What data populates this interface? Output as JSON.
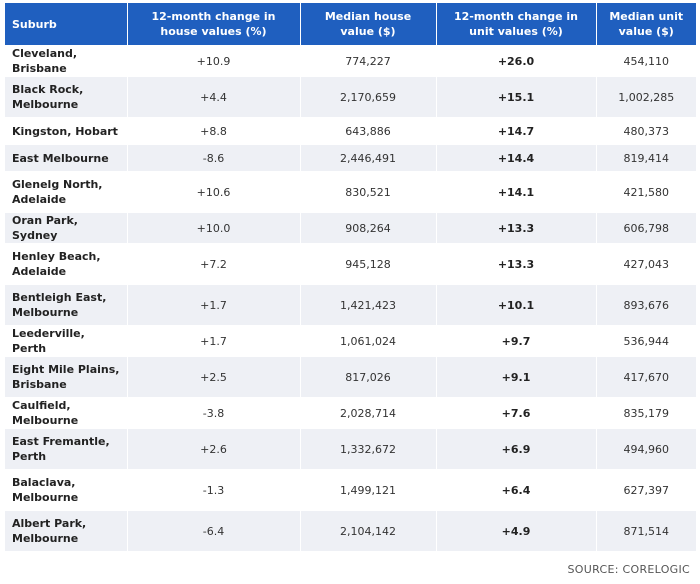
{
  "headers": {
    "suburb": "Suburb",
    "house_change": "12-month change in house values (%)",
    "house_median": "Median house value ($)",
    "unit_change": "12-month change in unit values (%)",
    "unit_median": "Median unit value ($)"
  },
  "rows": [
    {
      "suburb": "Cleveland, Brisbane",
      "house_change": "+10.9",
      "house_median": "774,227",
      "unit_change": "+26.0",
      "unit_median": "454,110"
    },
    {
      "suburb": "Black Rock, Melbourne",
      "house_change": "+4.4",
      "house_median": "2,170,659",
      "unit_change": "+15.1",
      "unit_median": "1,002,285"
    },
    {
      "suburb": "Kingston, Hobart",
      "house_change": "+8.8",
      "house_median": "643,886",
      "unit_change": "+14.7",
      "unit_median": "480,373"
    },
    {
      "suburb": "East Melbourne",
      "house_change": "-8.6",
      "house_median": "2,446,491",
      "unit_change": "+14.4",
      "unit_median": "819,414"
    },
    {
      "suburb": "Glenelg North, Adelaide",
      "house_change": "+10.6",
      "house_median": "830,521",
      "unit_change": "+14.1",
      "unit_median": "421,580"
    },
    {
      "suburb": "Oran Park, Sydney",
      "house_change": "+10.0",
      "house_median": "908,264",
      "unit_change": "+13.3",
      "unit_median": "606,798"
    },
    {
      "suburb": "Henley Beach, Adelaide",
      "house_change": "+7.2",
      "house_median": "945,128",
      "unit_change": "+13.3",
      "unit_median": "427,043"
    },
    {
      "suburb": "Bentleigh East, Melbourne",
      "house_change": "+1.7",
      "house_median": "1,421,423",
      "unit_change": "+10.1",
      "unit_median": "893,676"
    },
    {
      "suburb": "Leederville, Perth",
      "house_change": "+1.7",
      "house_median": "1,061,024",
      "unit_change": "+9.7",
      "unit_median": "536,944"
    },
    {
      "suburb": "Eight Mile Plains, Brisbane",
      "house_change": "+2.5",
      "house_median": "817,026",
      "unit_change": "+9.1",
      "unit_median": "417,670"
    },
    {
      "suburb": "Caulfield, Melbourne",
      "house_change": "-3.8",
      "house_median": "2,028,714",
      "unit_change": "+7.6",
      "unit_median": "835,179"
    },
    {
      "suburb": "East Fremantle, Perth",
      "house_change": "+2.6",
      "house_median": "1,332,672",
      "unit_change": "+6.9",
      "unit_median": "494,960"
    },
    {
      "suburb": "Balaclava, Melbourne",
      "house_change": "-1.3",
      "house_median": "1,499,121",
      "unit_change": "+6.4",
      "unit_median": "627,397"
    },
    {
      "suburb": "Albert Park, Melbourne",
      "house_change": "-6.4",
      "house_median": "2,104,142",
      "unit_change": "+4.9",
      "unit_median": "871,514"
    }
  ],
  "source": "SOURCE: CORELOGIC",
  "colors": {
    "header_bg": "#1f5fbf",
    "stripe_bg": "#eef0f5"
  }
}
